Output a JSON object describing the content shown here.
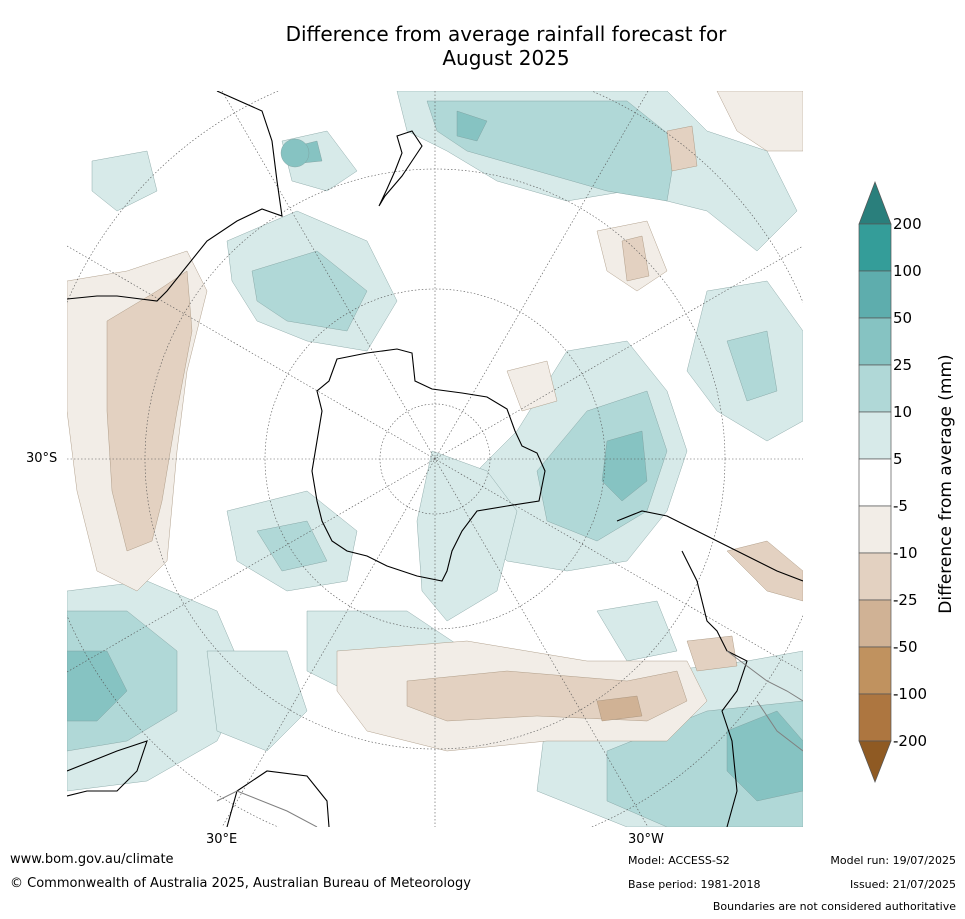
{
  "title_line1": "Difference from average rainfall forecast for",
  "title_line2": "August 2025",
  "map": {
    "projection": "south-polar-stereographic",
    "longitude_labels": [
      "30°E",
      "30°W"
    ],
    "latitude_labels": [
      "30°S"
    ],
    "coastline_color": "#000000",
    "boundary_color": "#808080"
  },
  "colorbar": {
    "label": "Difference from average (mm)",
    "ticks": [
      "200",
      "100",
      "50",
      "25",
      "10",
      "5",
      "-5",
      "-10",
      "-25",
      "-50",
      "-100",
      "-200"
    ],
    "colors": {
      "over_200": "#2a7f7c",
      "100_200": "#349d99",
      "50_100": "#5eadad",
      "25_50": "#86c3c2",
      "10_25": "#b0d8d7",
      "5_10": "#d7eae9",
      "neutral": "#ffffff",
      "m5_m10": "#f2ede7",
      "m10_m25": "#e3d1c1",
      "m25_m50": "#d0b295",
      "m50_m100": "#c0925f",
      "m100_m200": "#ad7640",
      "under_m200": "#8f5a23"
    }
  },
  "footer": {
    "website": "www.bom.gov.au/climate",
    "copyright": "© Commonwealth of Australia 2025, Australian Bureau of Meteorology",
    "model": "Model: ACCESS-S2",
    "base_period": "Base period: 1981-2018",
    "model_run": "Model run: 19/07/2025",
    "issued": "Issued: 21/07/2025",
    "disclaimer": "Boundaries are not considered authoritative"
  }
}
